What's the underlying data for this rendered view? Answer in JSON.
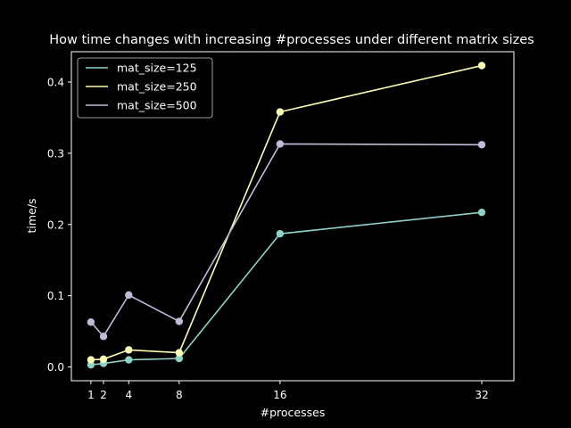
{
  "chart_data": {
    "type": "line",
    "title": "How time changes with increasing #processes under different matrix sizes",
    "xlabel": "#processes",
    "ylabel": "time/s",
    "x": [
      1,
      2,
      4,
      8,
      16,
      32
    ],
    "x_ticks": [
      1,
      2,
      4,
      8,
      16,
      32
    ],
    "y_ticks": [
      0.0,
      0.1,
      0.2,
      0.3,
      0.4
    ],
    "y_tick_labels": [
      "0.0",
      "0.1",
      "0.2",
      "0.3",
      "0.4"
    ],
    "xlim": [
      -0.55,
      34.55
    ],
    "ylim": [
      -0.0193,
      0.4425
    ],
    "grid": false,
    "legend_position": "top-left",
    "background_color": "#000000",
    "series": [
      {
        "name": "mat_size=125",
        "color": "#8dd3c7",
        "values": [
          0.003,
          0.005,
          0.01,
          0.012,
          0.187,
          0.217
        ]
      },
      {
        "name": "mat_size=250",
        "color": "#feffb3",
        "values": [
          0.01,
          0.011,
          0.024,
          0.02,
          0.358,
          0.423
        ]
      },
      {
        "name": "mat_size=500",
        "color": "#bfbbd9",
        "values": [
          0.063,
          0.043,
          0.101,
          0.064,
          0.313,
          0.312
        ]
      }
    ]
  }
}
